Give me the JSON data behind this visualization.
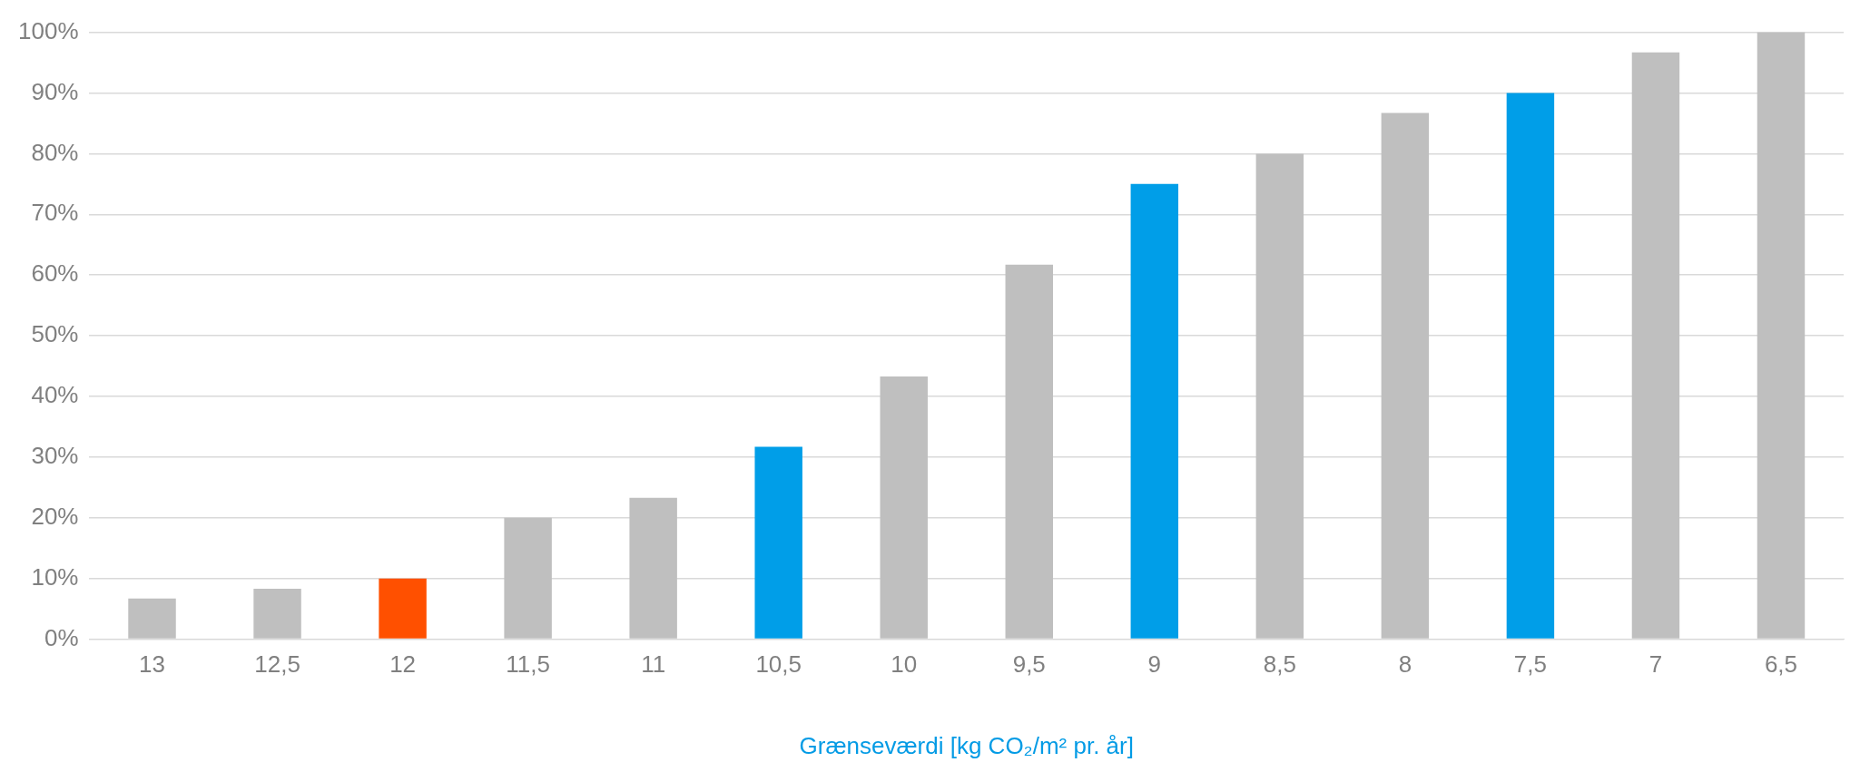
{
  "chart_data": {
    "type": "bar",
    "xlabel": "Grænseværdi [kg CO₂/m² pr. år]",
    "categories": [
      "13",
      "12,5",
      "12",
      "11,5",
      "11",
      "10,5",
      "10",
      "9,5",
      "9",
      "8,5",
      "8",
      "7,5",
      "7",
      "6,5"
    ],
    "values": [
      6.7,
      8.3,
      10,
      20,
      23.3,
      31.7,
      43.3,
      61.7,
      75,
      80,
      86.7,
      90,
      96.7,
      100
    ],
    "colors": [
      "#bfbfbf",
      "#bfbfbf",
      "#ff5000",
      "#bfbfbf",
      "#bfbfbf",
      "#009ee8",
      "#bfbfbf",
      "#bfbfbf",
      "#009ee8",
      "#bfbfbf",
      "#bfbfbf",
      "#009ee8",
      "#bfbfbf",
      "#bfbfbf"
    ],
    "ylim": [
      0,
      100
    ],
    "yticks": [
      {
        "value": 0,
        "label": "0%"
      },
      {
        "value": 10,
        "label": "10%"
      },
      {
        "value": 20,
        "label": "20%"
      },
      {
        "value": 30,
        "label": "30%"
      },
      {
        "value": 40,
        "label": "40%"
      },
      {
        "value": 50,
        "label": "50%"
      },
      {
        "value": 60,
        "label": "60%"
      },
      {
        "value": 70,
        "label": "70%"
      },
      {
        "value": 80,
        "label": "80%"
      },
      {
        "value": 90,
        "label": "90%"
      },
      {
        "value": 100,
        "label": "100%"
      }
    ],
    "grid": "y",
    "legend": false
  }
}
